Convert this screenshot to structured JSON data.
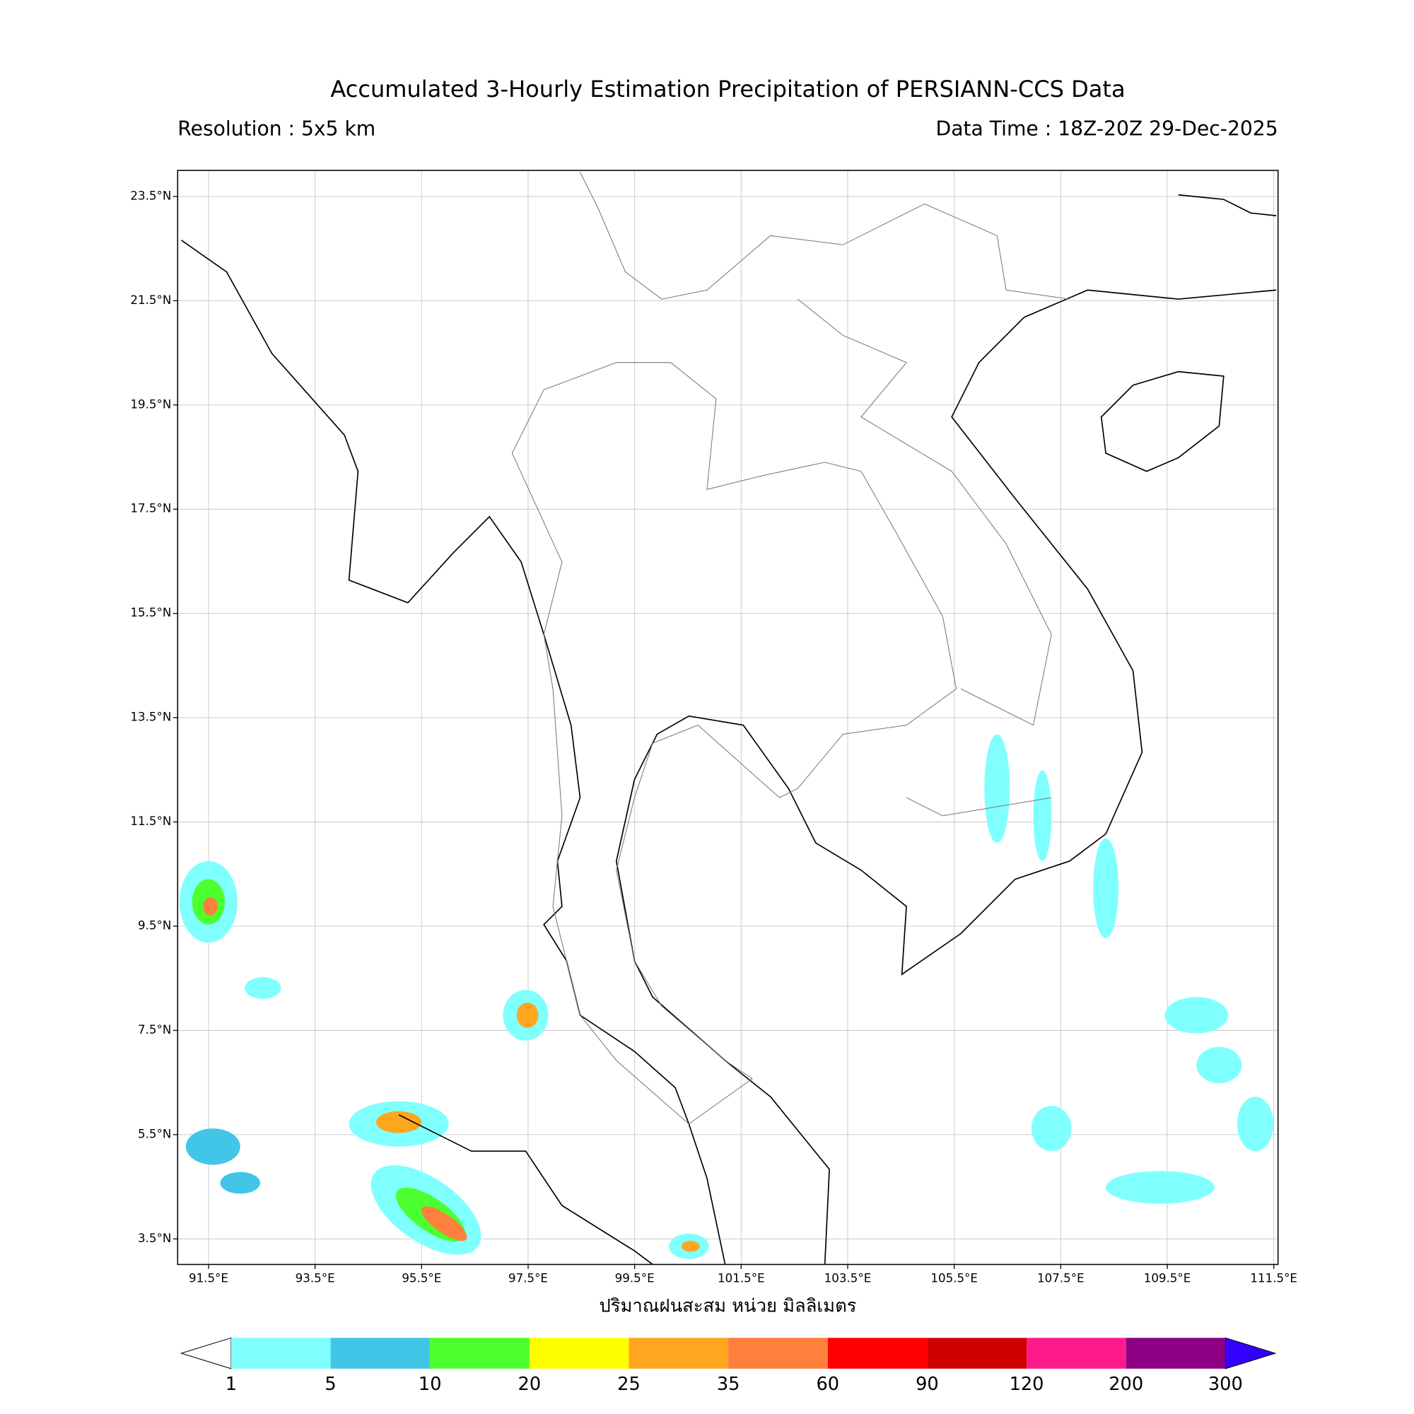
{
  "header": {
    "title": "Accumulated 3-Hourly Estimation Precipitation of PERSIANN-CCS Data",
    "resolution": "Resolution : 5x5 km",
    "data_time": "Data Time : 18Z-20Z 29-Dec-2025"
  },
  "map": {
    "xlim": [
      90.92,
      111.58
    ],
    "ylim": [
      3.01,
      24.0
    ],
    "xticks": [
      {
        "value": 91.5,
        "label": "91.5°E"
      },
      {
        "value": 93.5,
        "label": "93.5°E"
      },
      {
        "value": 95.5,
        "label": "95.5°E"
      },
      {
        "value": 97.5,
        "label": "97.5°E"
      },
      {
        "value": 99.5,
        "label": "99.5°E"
      },
      {
        "value": 101.5,
        "label": "101.5°E"
      },
      {
        "value": 103.5,
        "label": "103.5°E"
      },
      {
        "value": 105.5,
        "label": "105.5°E"
      },
      {
        "value": 107.5,
        "label": "107.5°E"
      },
      {
        "value": 109.5,
        "label": "109.5°E"
      },
      {
        "value": 111.5,
        "label": "111.5°E"
      }
    ],
    "yticks": [
      {
        "value": 3.5,
        "label": "3.5°N"
      },
      {
        "value": 5.5,
        "label": "5.5°N"
      },
      {
        "value": 7.5,
        "label": "7.5°N"
      },
      {
        "value": 9.5,
        "label": "9.5°N"
      },
      {
        "value": 11.5,
        "label": "11.5°N"
      },
      {
        "value": 13.5,
        "label": "13.5°N"
      },
      {
        "value": 15.5,
        "label": "15.5°N"
      },
      {
        "value": 17.5,
        "label": "17.5°N"
      },
      {
        "value": 19.5,
        "label": "19.5°N"
      },
      {
        "value": 21.5,
        "label": "21.5°N"
      },
      {
        "value": 23.5,
        "label": "23.5°N"
      }
    ],
    "grid": true
  },
  "colorbar": {
    "label": "ปริมาณฝนสะสม หน่วย มิลลิเมตร",
    "levels": [
      1,
      5,
      10,
      20,
      25,
      35,
      60,
      90,
      120,
      200,
      300
    ],
    "colors": [
      "#80ffff",
      "#42c6e8",
      "#4cff2e",
      "#ffff00",
      "#ffa61e",
      "#ff7f3c",
      "#ff0000",
      "#cc0000",
      "#ff1a8c",
      "#8b0083"
    ],
    "under_color": "#ffffff",
    "over_color": "#3300ff"
  }
}
